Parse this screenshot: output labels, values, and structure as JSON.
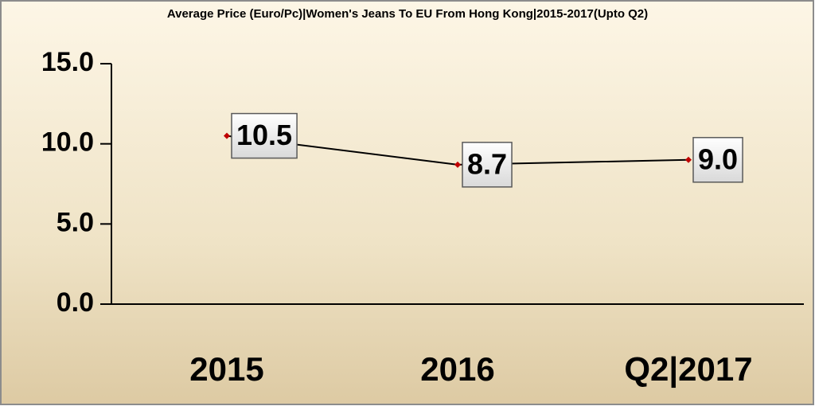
{
  "chart_data": {
    "type": "line",
    "title": "Average Price (Euro/Pc)|Women's Jeans To EU From Hong Kong|2015-2017(Upto Q2)",
    "categories": [
      "2015",
      "2016",
      "Q2|2017"
    ],
    "values": [
      10.5,
      8.7,
      9.0
    ],
    "value_labels": [
      "10.5",
      "8.7",
      "9.0"
    ],
    "color": "#000000",
    "marker_color": "#c00000",
    "ylim": [
      0,
      15
    ],
    "yticks": [
      {
        "value": 0,
        "label": "0.0"
      },
      {
        "value": 5,
        "label": "5.0"
      },
      {
        "value": 10,
        "label": "10.0"
      },
      {
        "value": 15,
        "label": "15.0"
      }
    ]
  }
}
